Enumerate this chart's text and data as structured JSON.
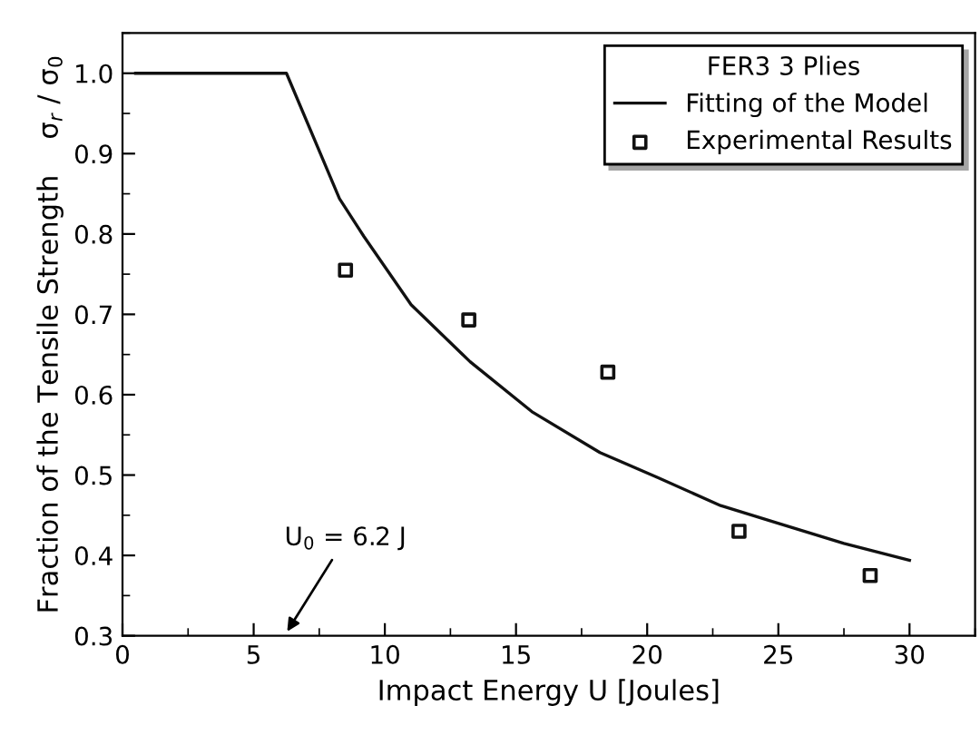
{
  "chart_data": {
    "type": "line",
    "xlabel": "Impact Energy U [Joules]",
    "ylabel": "Fraction of the Tensile Strength    σ$_{r}$ / σ$_{0}$",
    "legend_title": "FER3 3 Plies",
    "xlim": [
      0,
      32.5
    ],
    "ylim": [
      0.3,
      1.05
    ],
    "xticks": [
      0,
      5,
      10,
      15,
      20,
      25,
      30
    ],
    "yticks": [
      {
        "value": 0.3,
        "label": "0.3"
      },
      {
        "value": 0.4,
        "label": "0.4"
      },
      {
        "value": 0.5,
        "label": "0.5"
      },
      {
        "value": 0.6,
        "label": "0.6"
      },
      {
        "value": 0.7,
        "label": "0.7"
      },
      {
        "value": 0.8,
        "label": "0.8"
      },
      {
        "value": 0.9,
        "label": "0.9"
      },
      {
        "value": 1.0,
        "label": "1.0"
      }
    ],
    "grid": false,
    "legend": "top right",
    "series": [
      {
        "name": "Fitting of the Model",
        "color": "#111111",
        "marker": "none",
        "line_style": "solid",
        "x": [
          0.5,
          6.25,
          8.27,
          9.2,
          11.0,
          13.25,
          15.6,
          18.2,
          20.4,
          22.8,
          25.1,
          27.5,
          30
        ],
        "values": [
          1.0,
          1.0,
          0.844,
          0.797,
          0.712,
          0.641,
          0.579,
          0.528,
          0.497,
          0.462,
          0.439,
          0.415,
          0.394
        ]
      },
      {
        "name": "Experimental Results",
        "type": "scatter",
        "color": "#111111",
        "marker": "square",
        "x": [
          8.5,
          13.2,
          18.5,
          23.5,
          28.5
        ],
        "values": [
          0.755,
          0.693,
          0.628,
          0.43,
          0.375
        ]
      }
    ],
    "annotations": [
      "U$_{0}$ = 6.2 J"
    ]
  }
}
